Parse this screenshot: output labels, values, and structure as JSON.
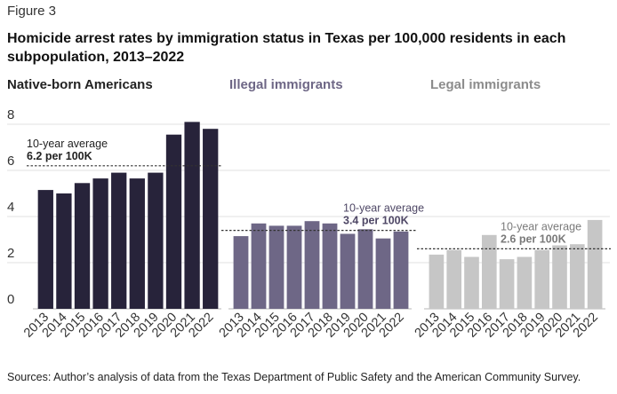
{
  "figure_label": "Figure 3",
  "chart_data": {
    "type": "bar",
    "title": "Homicide arrest rates by immigration status in Texas per 100,000 residents in each subpopulation, 2013–2022",
    "categories": [
      "2013",
      "2014",
      "2015",
      "2016",
      "2017",
      "2018",
      "2019",
      "2020",
      "2021",
      "2022"
    ],
    "ylim": [
      0,
      8
    ],
    "yticks": [
      0,
      2,
      4,
      6,
      8
    ],
    "grid": true,
    "average_label": "10-year average",
    "panels": [
      {
        "name": "Native-born Americans",
        "color": "#27233a",
        "title_color": "#222222",
        "values": [
          5.15,
          5.0,
          5.45,
          5.65,
          5.9,
          5.65,
          5.9,
          7.55,
          8.1,
          7.8
        ],
        "average": 6.2,
        "average_text": "6.2 per 100K",
        "average_text_color": "#222222"
      },
      {
        "name": "Illegal immigrants",
        "color": "#6e6786",
        "title_color": "#6e6786",
        "values": [
          3.15,
          3.7,
          3.6,
          3.6,
          3.8,
          3.7,
          3.25,
          3.45,
          3.05,
          3.35
        ],
        "average": 3.4,
        "average_text": "3.4 per 100K",
        "average_text_color": "#4f4866"
      },
      {
        "name": "Legal immigrants",
        "color": "#c6c6c6",
        "title_color": "#8c8c8c",
        "values": [
          2.35,
          2.55,
          2.25,
          3.2,
          2.15,
          2.25,
          2.55,
          2.75,
          2.8,
          3.85
        ],
        "average": 2.6,
        "average_text": "2.6 per 100K",
        "average_text_color": "#7a7a7a"
      }
    ]
  },
  "source": "Sources: Author’s analysis of data from the Texas Department of Public Safety and the American Community Survey."
}
